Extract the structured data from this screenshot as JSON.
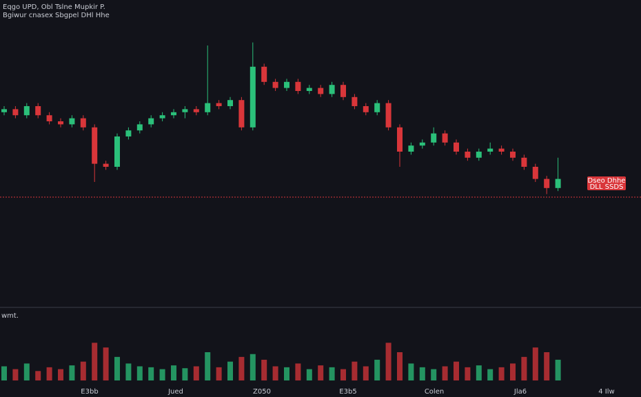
{
  "chart_data": {
    "type": "candlestick",
    "title": "Eqgo UPD, Obl Tslne Mupkir P.",
    "subtitle": "Bgiwur cnasex Sbgpel DHl Hhe",
    "up_color": "#2bc07a",
    "down_color": "#d9363a",
    "ylim": [
      0,
      100
    ],
    "open": [
      63,
      64,
      62,
      65,
      62,
      60,
      59,
      61,
      58,
      46,
      45,
      55,
      57,
      59,
      61,
      62,
      63,
      64,
      63,
      66,
      65,
      67,
      58,
      78,
      73,
      71,
      73,
      70,
      71,
      69,
      72,
      68,
      65,
      63,
      66,
      58,
      50,
      52,
      53,
      56,
      53,
      50,
      48,
      50,
      51,
      50,
      48,
      45,
      41,
      38
    ],
    "high": [
      65,
      65,
      66,
      66,
      63,
      61,
      62,
      62,
      59,
      47,
      56,
      58,
      60,
      62,
      63,
      64,
      65,
      65,
      85,
      67,
      68,
      68,
      86,
      79,
      74,
      74,
      74,
      72,
      72,
      73,
      73,
      69,
      66,
      67,
      67,
      59,
      53,
      54,
      58,
      57,
      54,
      51,
      51,
      53,
      52,
      51,
      49,
      46,
      42,
      48
    ],
    "low": [
      62,
      61,
      61,
      61,
      59,
      58,
      58,
      57,
      40,
      44,
      44,
      54,
      56,
      58,
      60,
      61,
      61,
      62,
      62,
      64,
      64,
      57,
      57,
      72,
      70,
      70,
      69,
      69,
      68,
      68,
      67,
      64,
      62,
      62,
      57,
      45,
      49,
      51,
      52,
      52,
      49,
      47,
      47,
      49,
      49,
      47,
      44,
      40,
      36,
      37
    ],
    "close": [
      64,
      62,
      65,
      62,
      60,
      59,
      61,
      58,
      46,
      45,
      55,
      57,
      59,
      61,
      62,
      63,
      64,
      63,
      66,
      65,
      67,
      58,
      78,
      73,
      71,
      73,
      70,
      71,
      69,
      72,
      68,
      65,
      63,
      66,
      58,
      50,
      52,
      53,
      56,
      53,
      50,
      48,
      50,
      51,
      50,
      48,
      45,
      41,
      38,
      41
    ],
    "price_line": 35,
    "price_label": [
      "Dseo Dhhe",
      "DLL SSDS"
    ],
    "volume_label": "wmt.",
    "volume_ylim": [
      0,
      60
    ],
    "volume": [
      15,
      12,
      18,
      10,
      14,
      12,
      16,
      20,
      40,
      35,
      25,
      18,
      15,
      14,
      12,
      16,
      13,
      15,
      30,
      14,
      20,
      25,
      28,
      22,
      15,
      14,
      18,
      12,
      16,
      14,
      12,
      20,
      15,
      22,
      40,
      30,
      18,
      14,
      12,
      15,
      20,
      14,
      16,
      12,
      14,
      18,
      25,
      35,
      30,
      22
    ],
    "x_labels": [
      "E3bb",
      "Jued",
      "Z050",
      "E3b5",
      "Colen",
      "Jla6",
      "4 Ilw"
    ]
  }
}
